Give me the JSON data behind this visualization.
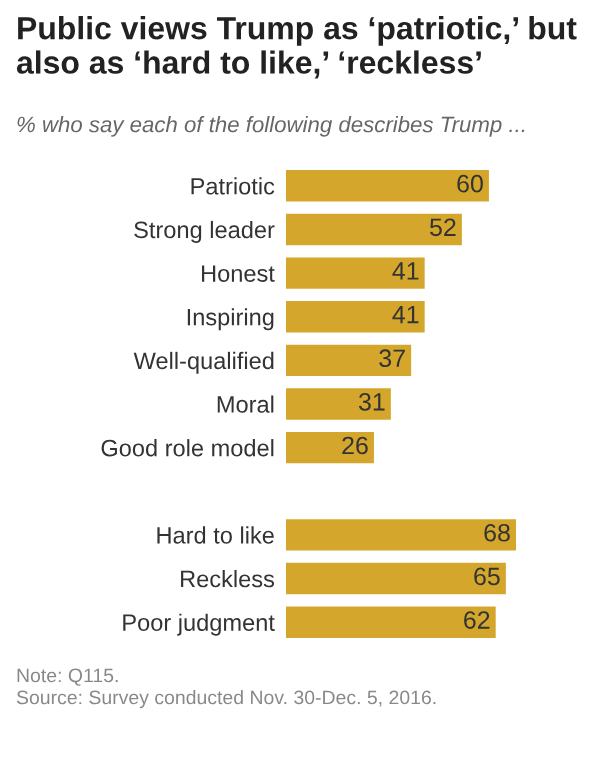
{
  "chart_data": {
    "type": "bar",
    "orientation": "horizontal",
    "title": "Public views Trump as ‘patriotic,’ but also as ‘hard to like,’ ‘reckless’",
    "subtitle": "% who say each of the following describes Trump ...",
    "categories": [
      "Patriotic",
      "Strong leader",
      "Honest",
      "Inspiring",
      "Well-qualified",
      "Moral",
      "Good role model",
      null,
      "Hard to like",
      "Reckless",
      "Poor judgment"
    ],
    "values": [
      60,
      52,
      41,
      41,
      37,
      31,
      26,
      null,
      68,
      65,
      62
    ],
    "color": "#d4a72c",
    "data_labels": true,
    "grid": false,
    "legend": false,
    "tick_labels": "y",
    "annotations": [
      "Note: Q115.",
      "Source: Survey conducted Nov. 30-Dec. 5, 2016."
    ]
  }
}
